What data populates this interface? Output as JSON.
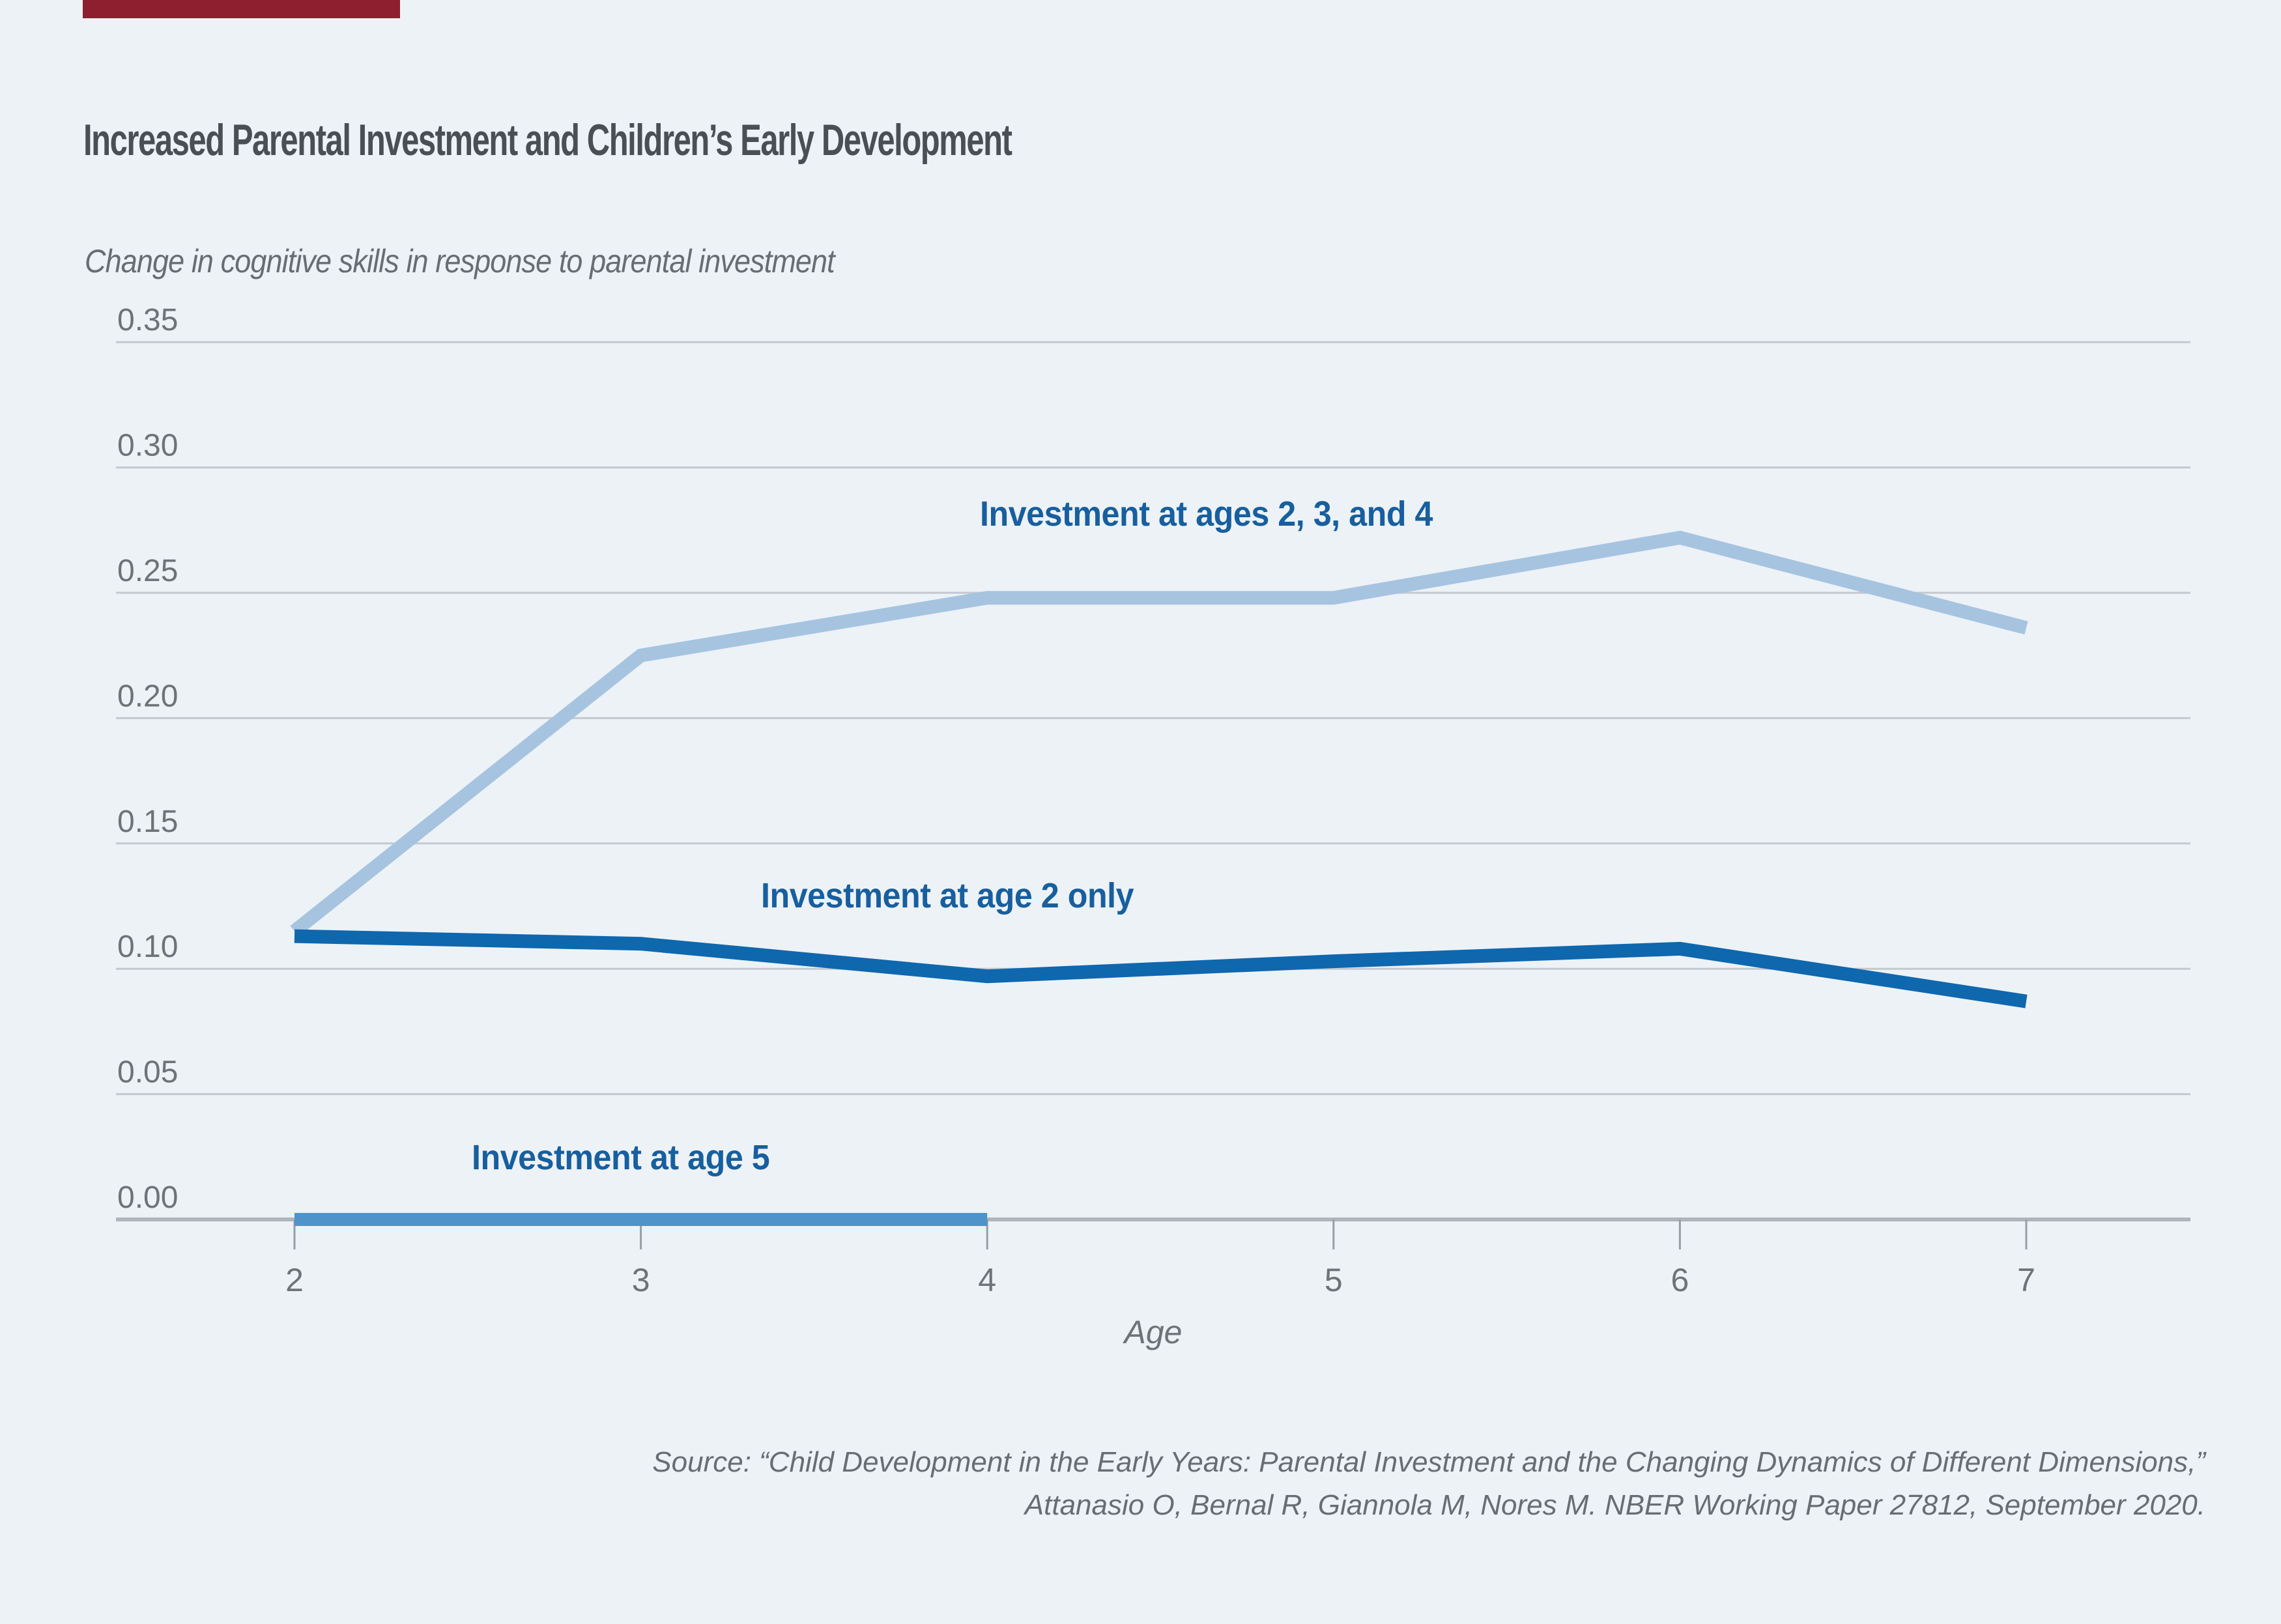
{
  "page": {
    "background": "#EDF2F7",
    "accent_bar_color": "#8E1F2F"
  },
  "header": {
    "title": "Increased Parental Investment and Children’s Early Development"
  },
  "chart_data": {
    "type": "line",
    "subtitle": "Change in cognitive skills in response to parental investment",
    "xlabel": "Age",
    "grid": true,
    "ylim": [
      0.0,
      0.35
    ],
    "xlim": [
      2,
      7
    ],
    "y_tick_labels": [
      "0.35",
      "0.30",
      "0.25",
      "0.20",
      "0.15",
      "0.10",
      "0.05",
      "0.00"
    ],
    "x_ticks": [
      2,
      3,
      4,
      5,
      6,
      7
    ],
    "x_tick_labels": [
      "2",
      "3",
      "4",
      "5",
      "6",
      "7"
    ],
    "legend_text_color": "#175F9E",
    "style": {
      "grid_color": "#C2C9CE",
      "axis_color": "#AEB5BB",
      "tick_color": "#979EA4"
    },
    "series": [
      {
        "name": "Investment at ages 2, 3, and 4",
        "color": "#A6C4E0",
        "x": [
          2,
          3,
          4,
          5,
          6,
          7
        ],
        "values": [
          0.115,
          0.225,
          0.248,
          0.248,
          0.272,
          0.236
        ]
      },
      {
        "name": "Investment at age 2 only",
        "color": "#0F67AE",
        "x": [
          2,
          3,
          4,
          5,
          6,
          7
        ],
        "values": [
          0.113,
          0.11,
          0.097,
          0.103,
          0.108,
          0.087
        ]
      },
      {
        "name": "Investment at age 5",
        "color": "#4E93C9",
        "x": [
          2,
          3,
          4
        ],
        "values": [
          0.0,
          0.0,
          0.0
        ]
      }
    ]
  },
  "source": {
    "line1": "Source: “Child Development in the Early Years: Parental Investment and the Changing Dynamics of Different Dimensions,”",
    "line2": "Attanasio O, Bernal R, Giannola M, Nores M. NBER Working Paper 27812, September 2020."
  }
}
